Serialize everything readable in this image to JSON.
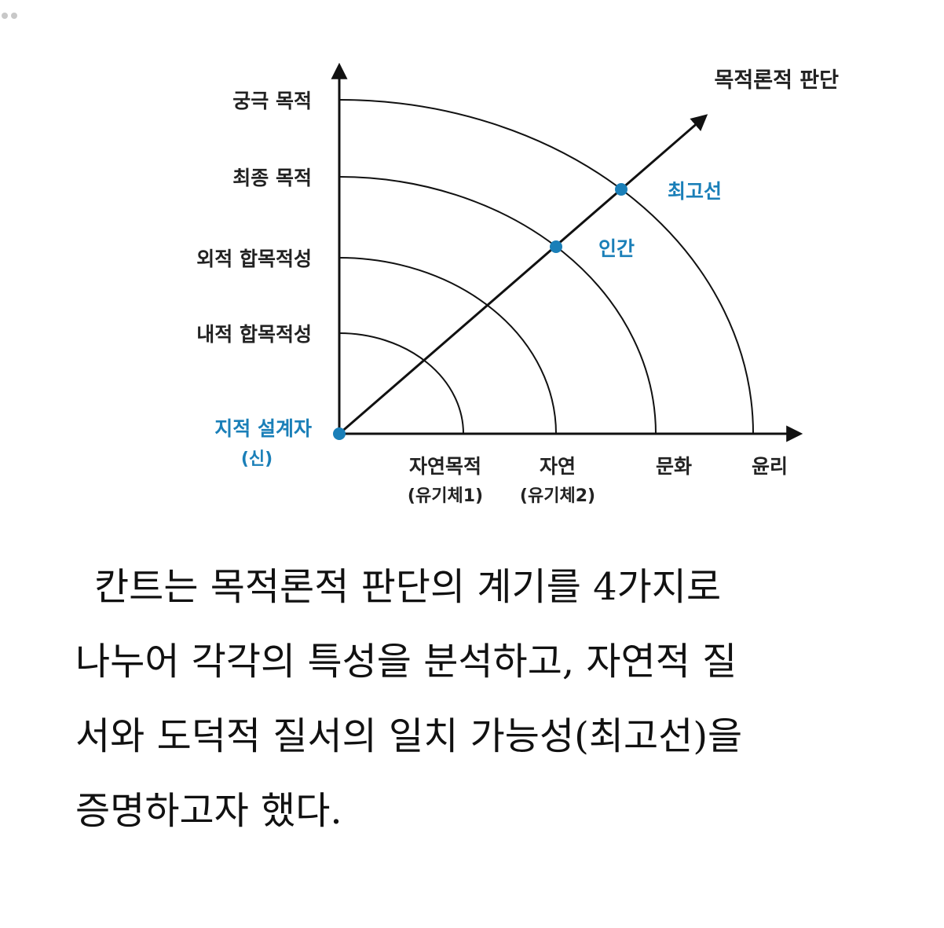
{
  "diagram": {
    "y_axis_labels": [
      "궁극 목적",
      "최종 목적",
      "외적 합목적성",
      "내적 합목적성"
    ],
    "origin_label": "지적 설계자",
    "origin_sub": "(신)",
    "x_axis_labels": [
      {
        "label": "자연목적",
        "sub": "(유기체1)"
      },
      {
        "label": "자연",
        "sub": "(유기체2)"
      },
      {
        "label": "문화",
        "sub": ""
      },
      {
        "label": "윤리",
        "sub": ""
      }
    ],
    "diagonal_label": "목적론적 판단",
    "point_labels": [
      "인간",
      "최고선"
    ],
    "colors": {
      "accent": "#1a7fb8",
      "line": "#111111",
      "text": "#222222"
    }
  },
  "caption": {
    "lines": [
      "칸트는 목적론적 판단의 계기를 4가지로",
      "나누어 각각의 특성을 분석하고, 자연적 질",
      "서와 도덕적 질서의 일치 가능성(최고선)을",
      "증명하고자 했다."
    ]
  }
}
